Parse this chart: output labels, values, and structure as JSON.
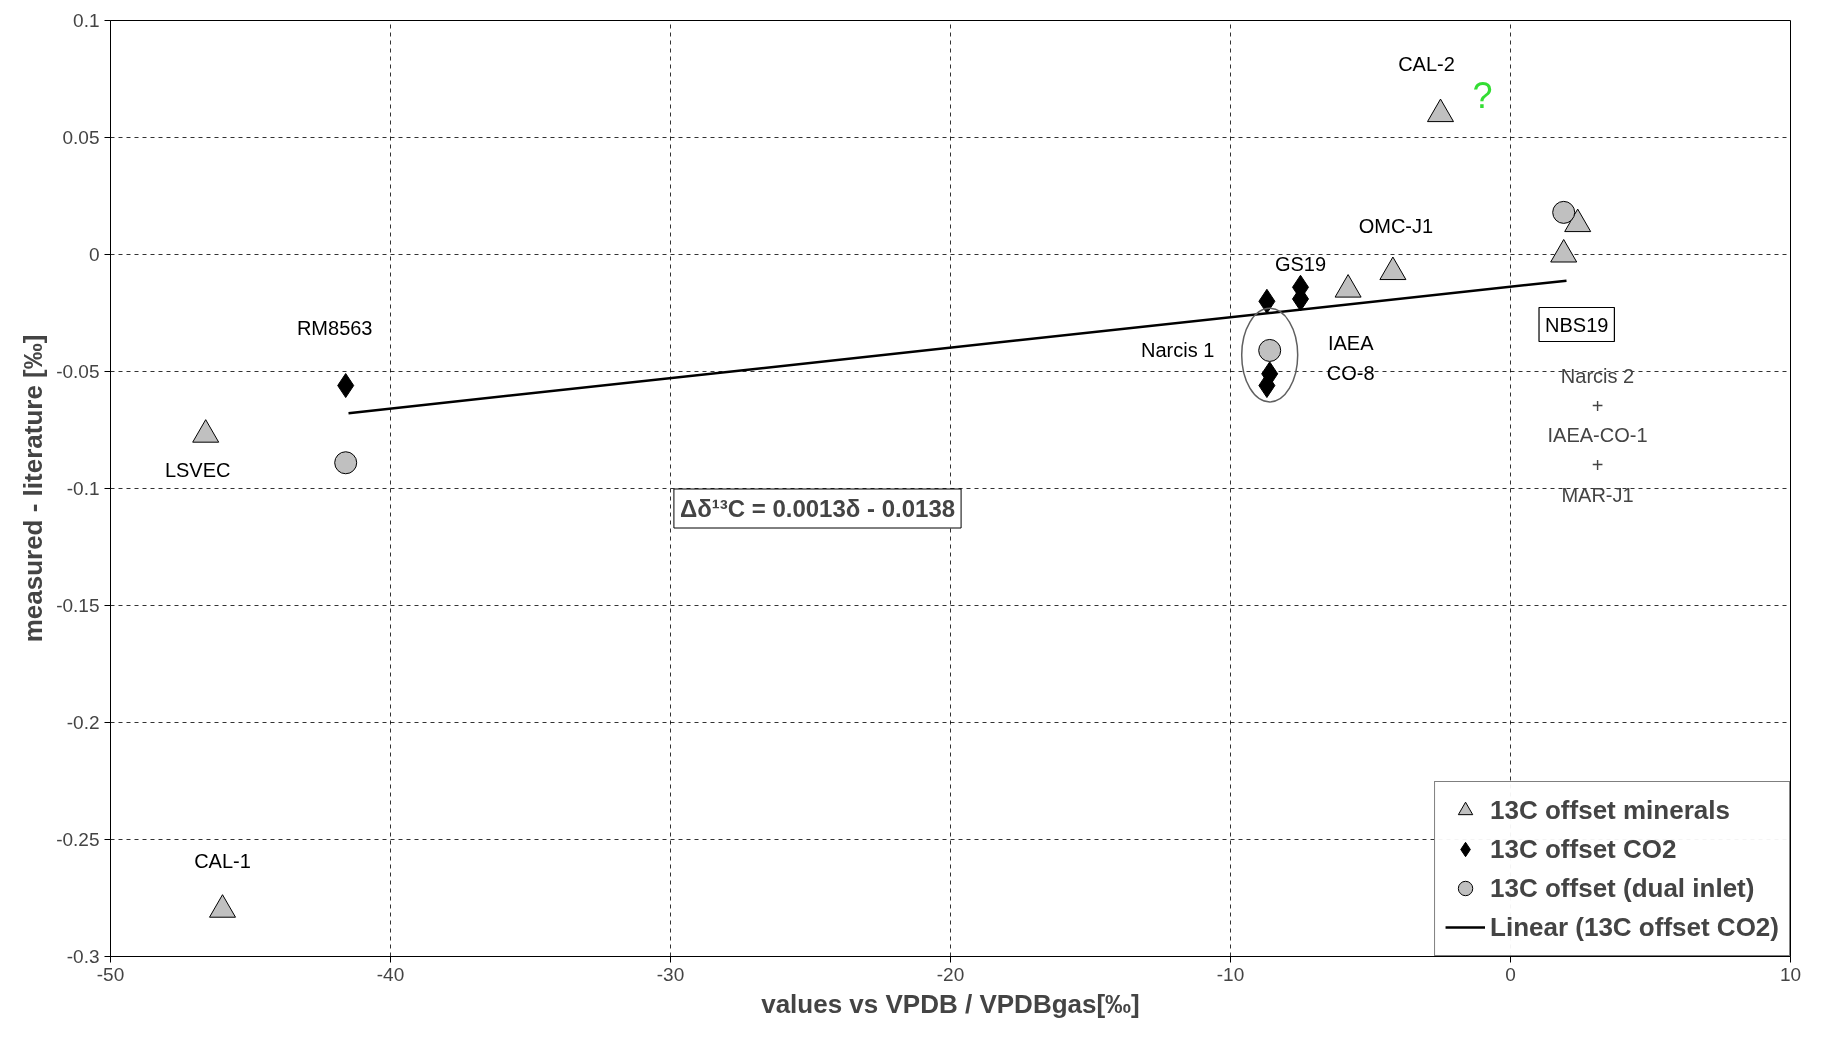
{
  "chart_data": {
    "type": "scatter",
    "xlabel": "values vs VPDB / VPDBgas[‰]",
    "ylabel": "measured - literature [‰]",
    "xlim": [
      -50,
      10
    ],
    "ylim": [
      -0.3,
      0.1
    ],
    "xticks": [
      -50,
      -40,
      -30,
      -20,
      -10,
      0,
      10
    ],
    "yticks": [
      -0.3,
      -0.25,
      -0.2,
      -0.15,
      -0.1,
      -0.05,
      0,
      0.05,
      0.1
    ],
    "grid": true,
    "legend": "bottom right",
    "series": [
      {
        "name": "13C offset minerals",
        "marker": "triangle",
        "color": "#c0c0c0",
        "x": [
          -2.5,
          -4.2,
          -5.8,
          2.4,
          1.9,
          -46.6,
          -46.0
        ],
        "values": [
          0.06,
          -0.0075,
          -0.015,
          0.013,
          0.0,
          -0.077,
          -0.28
        ]
      },
      {
        "name": "13C offset CO2",
        "marker": "diamond",
        "color": "#000000",
        "x": [
          -41.6,
          -8.7,
          -7.5,
          -7.5,
          -8.6,
          -8.7
        ],
        "values": [
          -0.056,
          -0.02,
          -0.014,
          -0.019,
          -0.051,
          -0.056
        ]
      },
      {
        "name": "13C offset (dual inlet)",
        "marker": "circle",
        "color": "#c0c0c0",
        "x": [
          -41.6,
          -8.6,
          1.9
        ],
        "values": [
          -0.089,
          -0.041,
          0.018
        ]
      },
      {
        "name": "Linear (13C offset CO2)",
        "type": "line",
        "line_style": "solid",
        "color": "#000000",
        "x": [
          -41.5,
          2.0
        ],
        "values": [
          -0.0678,
          -0.0112
        ]
      }
    ],
    "annotations": [
      {
        "text": "CAL-2",
        "x": -2.5,
        "y": 0.06
      },
      {
        "text": "?",
        "x": -2.5,
        "y": 0.06
      },
      {
        "text": "OMC-J1",
        "x": -4.2,
        "y": -0.0075
      },
      {
        "text": "GS19",
        "x": -7.5,
        "y": -0.014
      },
      {
        "text": "RM8563",
        "x": -41.6,
        "y": -0.056
      },
      {
        "text": "LSVEC",
        "x": -46.6,
        "y": -0.077
      },
      {
        "text": "CAL-1",
        "x": -46.0,
        "y": -0.28
      },
      {
        "text": "Narcis 1",
        "x": -8.6,
        "y": -0.041
      },
      {
        "text": "NBS19",
        "x": 1.9,
        "y": 0.0
      },
      {
        "text": "IAEA\nCO-8",
        "x": -8.6,
        "y": -0.051
      },
      "Narcis 2\n+\nIAEA-CO-1\n+\nMAR-J1",
      "Δδ¹³C = 0.0013δ - 0.0138"
    ]
  }
}
